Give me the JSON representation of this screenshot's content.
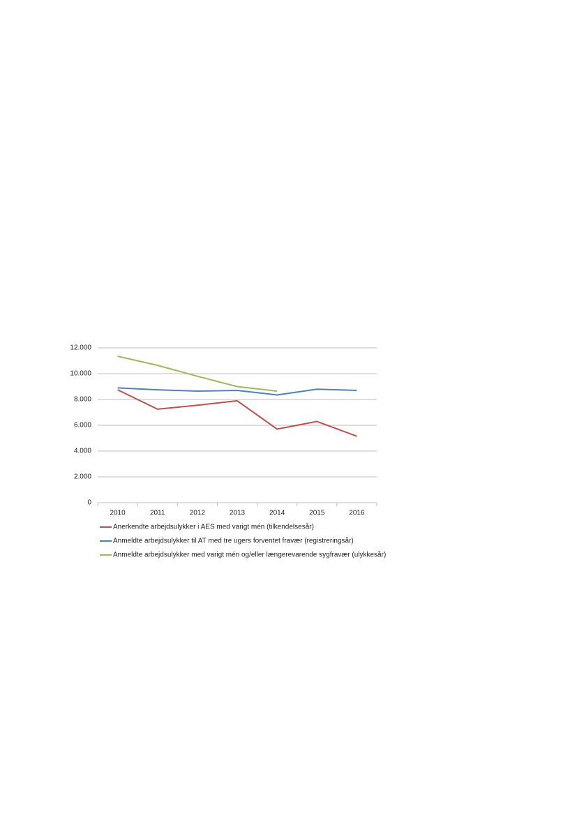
{
  "chart_data": {
    "type": "line",
    "categories": [
      "2010",
      "2011",
      "2012",
      "2013",
      "2014",
      "2015",
      "2016"
    ],
    "series": [
      {
        "name": "Anerkendte arbejdsulykker i AES med varigt mén (tilkendelsesår)",
        "color": "#c0504d",
        "values": [
          8750,
          7250,
          7550,
          7900,
          5700,
          6300,
          5150
        ]
      },
      {
        "name": "Anmeldte arbejdsulykker til AT med tre ugers forventet fravær (registreringsår)",
        "color": "#4f81bd",
        "values": [
          8900,
          8750,
          8650,
          8700,
          8350,
          8800,
          8700
        ]
      },
      {
        "name": "Anmeldte arbejdsulykker med varigt mén og/eller længerevarende sygfravær (ulykkesår)",
        "color": "#9bbb59",
        "values": [
          11350,
          10650,
          9800,
          9000,
          8650,
          null,
          null
        ]
      }
    ],
    "ylim": [
      0,
      12000
    ],
    "yticks": [
      0,
      {
        "value": 2000,
        "label": "2.000"
      },
      {
        "value": 4000,
        "label": "4.000"
      },
      {
        "value": 6000,
        "label": "6.000"
      },
      {
        "value": 8000,
        "label": "8.000"
      },
      {
        "value": 10000,
        "label": "10.000"
      },
      {
        "value": 12000,
        "label": "12.000"
      }
    ],
    "grid": true
  }
}
